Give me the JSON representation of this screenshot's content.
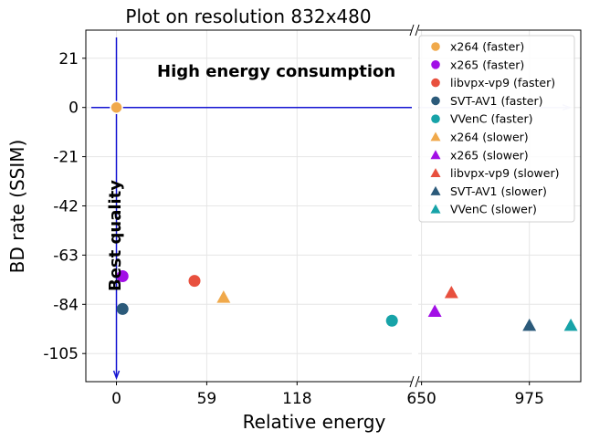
{
  "chart_data": {
    "type": "scatter",
    "title": "Plot on resolution 832x480",
    "xlabel": "Relative energy",
    "ylabel": "BD rate (SSIM)",
    "x_axis_broken": true,
    "x_left_segment": {
      "range": [
        -20,
        193
      ],
      "ticks": [
        0,
        59,
        118
      ]
    },
    "x_right_segment": {
      "range": [
        640,
        1130
      ],
      "ticks": [
        650,
        975
      ]
    },
    "ylim": [
      -117,
      33
    ],
    "y_ticks": [
      21,
      0,
      -21,
      -42,
      -63,
      -84,
      -105
    ],
    "grid": true,
    "legend_position": "top-right",
    "annotations": {
      "top": "High energy consumption",
      "left": "Best quality"
    },
    "series": [
      {
        "name": "x264 (faster)",
        "marker": "circle",
        "color": "#f0a94b",
        "x": 0,
        "y": 0
      },
      {
        "name": "x265 (faster)",
        "marker": "circle",
        "color": "#a20fe6",
        "x": 4,
        "y": -72
      },
      {
        "name": "libvpx-vp9 (faster)",
        "marker": "circle",
        "color": "#e8503e",
        "x": 51,
        "y": -74
      },
      {
        "name": "SVT-AV1 (faster)",
        "marker": "circle",
        "color": "#2b5a7a",
        "x": 4,
        "y": -86
      },
      {
        "name": "VVenC (faster)",
        "marker": "circle",
        "color": "#17a3a8",
        "x": 180,
        "y": -91
      },
      {
        "name": "x264 (slower)",
        "marker": "triangle",
        "color": "#f0a94b",
        "x": 70,
        "y": -81
      },
      {
        "name": "x265 (slower)",
        "marker": "triangle",
        "color": "#a20fe6",
        "x": 690,
        "y": -87
      },
      {
        "name": "libvpx-vp9 (slower)",
        "marker": "triangle",
        "color": "#e8503e",
        "x": 740,
        "y": -79
      },
      {
        "name": "SVT-AV1 (slower)",
        "marker": "triangle",
        "color": "#2b5a7a",
        "x": 975,
        "y": -93
      },
      {
        "name": "VVenC (slower)",
        "marker": "triangle",
        "color": "#17a3a8",
        "x": 1100,
        "y": -93
      }
    ]
  }
}
